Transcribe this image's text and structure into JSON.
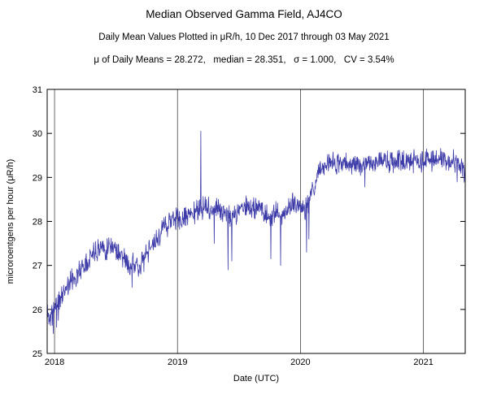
{
  "chart_data": {
    "type": "line",
    "title": "Median Observed Gamma Field, AJ4CO",
    "subtitle": "Daily Mean Values Plotted in μR/h, 10 Dec 2017 through 03 May 2021",
    "stats_line": "μ of Daily Means = 28.272,   median = 28.351,   σ = 1.000,   CV = 3.54%",
    "xlabel": "Date (UTC)",
    "ylabel": "microroentgens per hour (μR/h)",
    "x_range": [
      2017.94,
      2021.34
    ],
    "y_range": [
      25,
      31
    ],
    "x_ticks": [
      2018,
      2019,
      2020,
      2021
    ],
    "y_ticks": [
      25,
      26,
      27,
      28,
      29,
      30,
      31
    ],
    "line_color": "#3d3ba8",
    "grid_color": "#444444",
    "frame_color": "#000000",
    "seed": 11,
    "noise_amp": 0.3,
    "dip_prob": 0.012,
    "dip_max": 0.55,
    "anchors": [
      [
        2017.94,
        26.0
      ],
      [
        2017.96,
        25.8
      ],
      [
        2017.98,
        25.9
      ],
      [
        2018.02,
        26.15
      ],
      [
        2018.06,
        26.3
      ],
      [
        2018.1,
        26.55
      ],
      [
        2018.14,
        26.65
      ],
      [
        2018.18,
        26.8
      ],
      [
        2018.22,
        26.95
      ],
      [
        2018.26,
        27.1
      ],
      [
        2018.3,
        27.25
      ],
      [
        2018.34,
        27.35
      ],
      [
        2018.38,
        27.45
      ],
      [
        2018.42,
        27.4
      ],
      [
        2018.46,
        27.5
      ],
      [
        2018.5,
        27.4
      ],
      [
        2018.54,
        27.25
      ],
      [
        2018.58,
        27.1
      ],
      [
        2018.62,
        26.9
      ],
      [
        2018.64,
        27.15
      ],
      [
        2018.68,
        26.95
      ],
      [
        2018.72,
        27.1
      ],
      [
        2018.76,
        27.3
      ],
      [
        2018.8,
        27.45
      ],
      [
        2018.84,
        27.6
      ],
      [
        2018.88,
        27.8
      ],
      [
        2018.92,
        27.95
      ],
      [
        2018.96,
        28.05
      ],
      [
        2019.0,
        28.1
      ],
      [
        2019.04,
        28.0
      ],
      [
        2019.08,
        28.15
      ],
      [
        2019.12,
        28.2
      ],
      [
        2019.16,
        28.25
      ],
      [
        2019.2,
        28.3
      ],
      [
        2019.24,
        28.3
      ],
      [
        2019.28,
        28.25
      ],
      [
        2019.32,
        28.3
      ],
      [
        2019.36,
        28.25
      ],
      [
        2019.4,
        28.2
      ],
      [
        2019.44,
        28.05
      ],
      [
        2019.48,
        28.2
      ],
      [
        2019.52,
        28.3
      ],
      [
        2019.56,
        28.3
      ],
      [
        2019.6,
        28.25
      ],
      [
        2019.64,
        28.3
      ],
      [
        2019.68,
        28.3
      ],
      [
        2019.72,
        28.15
      ],
      [
        2019.76,
        28.05
      ],
      [
        2019.8,
        28.25
      ],
      [
        2019.84,
        28.0
      ],
      [
        2019.88,
        28.25
      ],
      [
        2019.92,
        28.35
      ],
      [
        2019.96,
        28.4
      ],
      [
        2020.0,
        28.4
      ],
      [
        2020.04,
        28.25
      ],
      [
        2020.08,
        28.5
      ],
      [
        2020.12,
        28.85
      ],
      [
        2020.16,
        29.15
      ],
      [
        2020.2,
        29.3
      ],
      [
        2020.25,
        29.35
      ],
      [
        2020.3,
        29.3
      ],
      [
        2020.35,
        29.35
      ],
      [
        2020.4,
        29.3
      ],
      [
        2020.45,
        29.35
      ],
      [
        2020.5,
        29.3
      ],
      [
        2020.55,
        29.35
      ],
      [
        2020.6,
        29.3
      ],
      [
        2020.65,
        29.4
      ],
      [
        2020.7,
        29.35
      ],
      [
        2020.75,
        29.3
      ],
      [
        2020.8,
        29.4
      ],
      [
        2020.85,
        29.35
      ],
      [
        2020.9,
        29.3
      ],
      [
        2020.95,
        29.4
      ],
      [
        2021.0,
        29.35
      ],
      [
        2021.05,
        29.4
      ],
      [
        2021.1,
        29.35
      ],
      [
        2021.15,
        29.45
      ],
      [
        2021.2,
        29.4
      ],
      [
        2021.25,
        29.35
      ],
      [
        2021.3,
        29.3
      ],
      [
        2021.34,
        29.05
      ]
    ],
    "spikes": [
      [
        2017.99,
        25.45
      ],
      [
        2018.03,
        25.75
      ],
      [
        2018.63,
        26.5
      ],
      [
        2019.19,
        30.05
      ],
      [
        2019.3,
        27.5
      ],
      [
        2019.41,
        26.9
      ],
      [
        2019.44,
        27.1
      ],
      [
        2019.76,
        27.15
      ],
      [
        2019.84,
        27.0
      ],
      [
        2020.05,
        27.3
      ],
      [
        2020.07,
        27.6
      ]
    ]
  }
}
